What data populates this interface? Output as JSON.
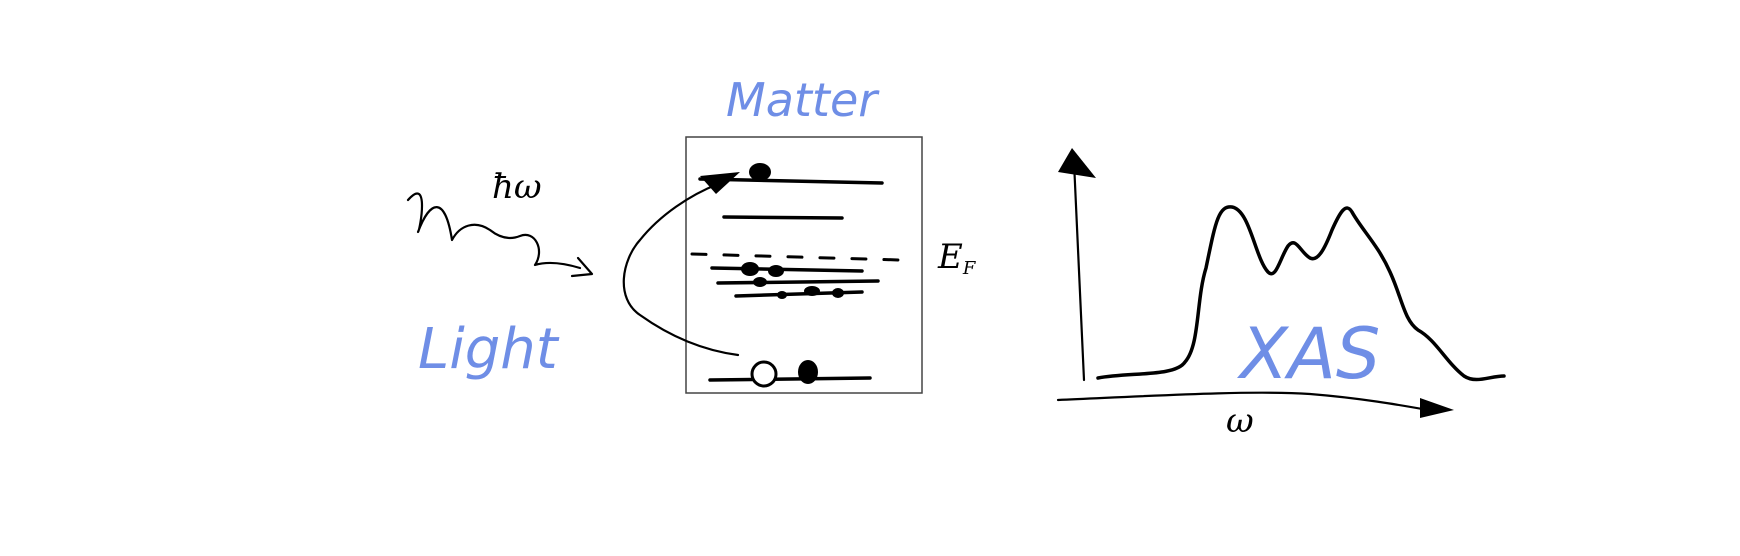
{
  "labels": {
    "matter": "Matter",
    "light": "Light",
    "photon_energy": "ħω",
    "fermi_level": "E_F",
    "spectrum": "XAS",
    "frequency_axis": "ω"
  },
  "colors": {
    "ink": "#000000",
    "accent_blue": "#6f8ee6",
    "background": "#ffffff"
  },
  "icons": {
    "photon": "wavy-arrow-icon",
    "excitation": "curved-arrow-icon",
    "axes": "arrow-axes-icon"
  }
}
